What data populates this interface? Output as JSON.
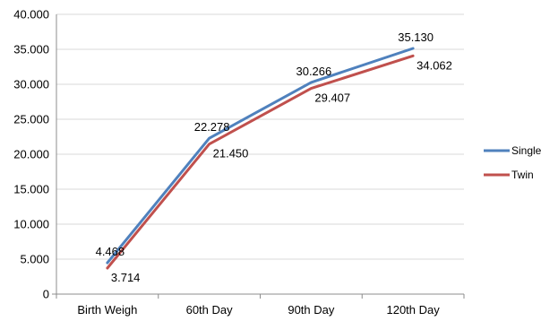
{
  "chart_data": {
    "type": "line",
    "categories": [
      "Birth Weigh",
      "60th Day",
      "90th Day",
      "120th Day"
    ],
    "series": [
      {
        "name": "Single",
        "values": [
          4.468,
          22.278,
          30.266,
          35.13
        ],
        "labels": [
          "4.468",
          "22.278",
          "30.266",
          "35.130"
        ],
        "color": "#4F81BD"
      },
      {
        "name": "Twin",
        "values": [
          3.714,
          21.45,
          29.407,
          34.062
        ],
        "labels": [
          "3.714",
          "21.450",
          "29.407",
          "34.062"
        ],
        "color": "#C0504D"
      }
    ],
    "yticks": [
      0,
      5,
      10,
      15,
      20,
      25,
      30,
      35,
      40
    ],
    "ytick_labels": [
      "0",
      "5.000",
      "10.000",
      "15.000",
      "20.000",
      "25.000",
      "30.000",
      "35.000",
      "40.000"
    ],
    "ylim": [
      0,
      40
    ],
    "grid": true,
    "legend_position": "right"
  }
}
